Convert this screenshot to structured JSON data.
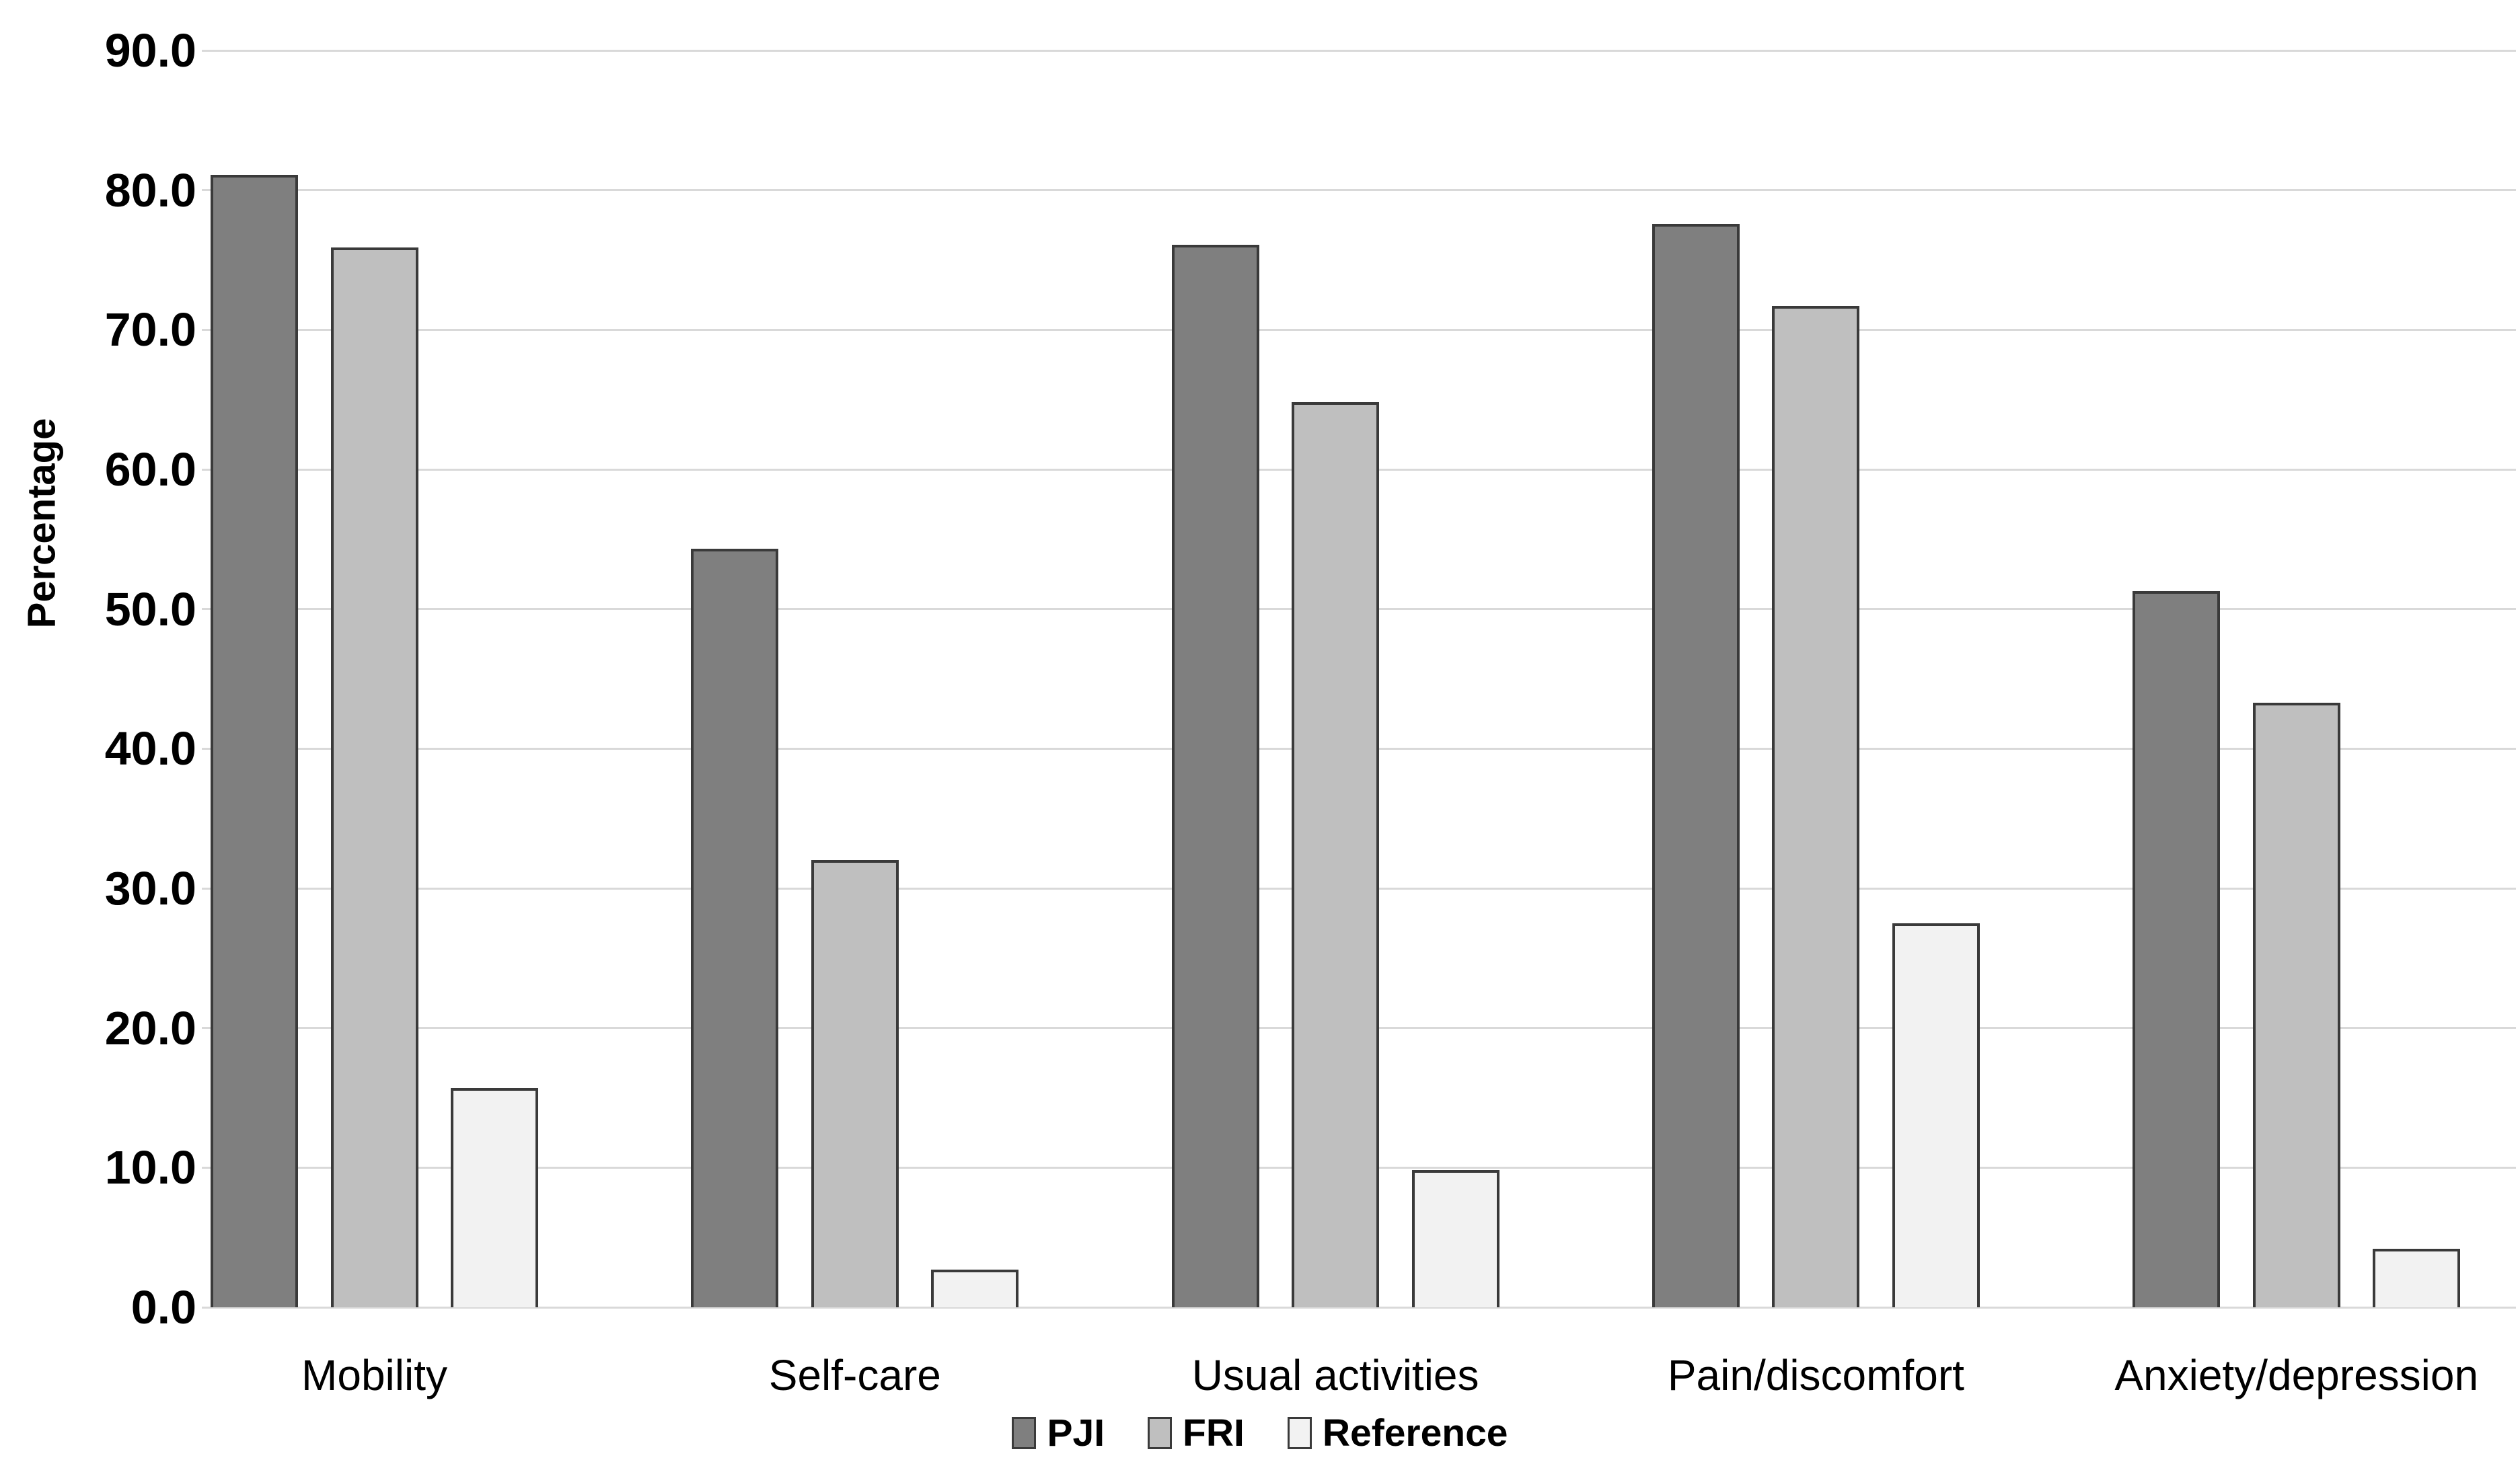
{
  "chart_data": {
    "type": "bar",
    "title": "",
    "categories": [
      "Mobility",
      "Self-care",
      "Usual activities",
      "Pain/discomfort",
      "Anxiety/depression"
    ],
    "series": [
      {
        "name": "PJI",
        "color": "#7f7f7f",
        "values": [
          81.1,
          54.3,
          76.1,
          77.6,
          51.3
        ]
      },
      {
        "name": "FRI",
        "color": "#bfbfbf",
        "values": [
          75.9,
          32.0,
          64.8,
          71.7,
          43.3
        ]
      },
      {
        "name": "Reference",
        "color": "#f2f2f2",
        "values": [
          15.7,
          2.7,
          9.8,
          27.5,
          4.2
        ]
      }
    ],
    "xlabel": "",
    "ylabel": "Percentage",
    "ylim": [
      0,
      90
    ],
    "ytick_step": 10,
    "ytick_labels": [
      "0.0",
      "10.0",
      "20.0",
      "30.0",
      "40.0",
      "50.0",
      "60.0",
      "70.0",
      "80.0",
      "90.0"
    ],
    "grid": "horizontal",
    "legend_position": "bottom",
    "colors": {
      "bar_border": "#3a3a3a",
      "gridline": "#d9d9d9",
      "axis_line": "#d9d9d9",
      "text": "#000000",
      "background": "#ffffff"
    }
  }
}
